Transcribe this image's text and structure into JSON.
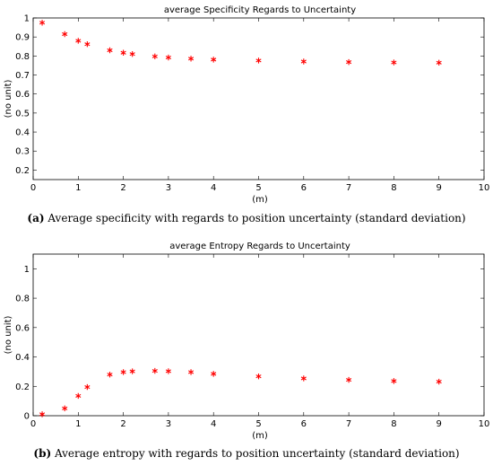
{
  "chart_data": [
    {
      "type": "scatter",
      "title": "average Specificity Regards to Uncertainty",
      "xlabel": "(m)",
      "ylabel": "(no unit)",
      "xlim": [
        0,
        10
      ],
      "ylim": [
        0.15,
        1.0
      ],
      "xticks": [
        "0",
        "1",
        "2",
        "3",
        "4",
        "5",
        "6",
        "7",
        "8",
        "9",
        "10"
      ],
      "yticks": [
        "0.2",
        "0.3",
        "0.4",
        "0.5",
        "0.6",
        "0.7",
        "0.8",
        "0.9",
        "1"
      ],
      "marker": "*",
      "color": "#ff0000",
      "grid": false,
      "caption_label": "(a)",
      "caption_text": " Average specificity with regards to position uncertainty (standard deviation)",
      "x": [
        0.2,
        0.7,
        1.0,
        1.2,
        1.7,
        2.0,
        2.2,
        2.7,
        3.0,
        3.5,
        4.0,
        5.0,
        6.0,
        7.0,
        8.0,
        9.0
      ],
      "y": [
        0.975,
        0.915,
        0.88,
        0.862,
        0.83,
        0.817,
        0.81,
        0.798,
        0.792,
        0.786,
        0.781,
        0.776,
        0.771,
        0.768,
        0.766,
        0.765
      ]
    },
    {
      "type": "scatter",
      "title": "average Entropy Regards to Uncertainty",
      "xlabel": "(m)",
      "ylabel": "(no unit)",
      "xlim": [
        0,
        10
      ],
      "ylim": [
        0,
        1.1
      ],
      "xticks": [
        "0",
        "1",
        "2",
        "3",
        "4",
        "5",
        "6",
        "7",
        "8",
        "9",
        "10"
      ],
      "yticks": [
        "0",
        "0.2",
        "0.4",
        "0.6",
        "0.8",
        "1"
      ],
      "marker": "*",
      "color": "#ff0000",
      "grid": false,
      "caption_label": "(b)",
      "caption_text": " Average entropy with regards to position uncertainty (standard deviation)",
      "x": [
        0.2,
        0.7,
        1.0,
        1.2,
        1.7,
        2.0,
        2.2,
        2.7,
        3.0,
        3.5,
        4.0,
        5.0,
        6.0,
        7.0,
        8.0,
        9.0
      ],
      "y": [
        0.01,
        0.05,
        0.135,
        0.195,
        0.28,
        0.297,
        0.302,
        0.305,
        0.303,
        0.297,
        0.285,
        0.268,
        0.254,
        0.244,
        0.236,
        0.232
      ]
    }
  ]
}
